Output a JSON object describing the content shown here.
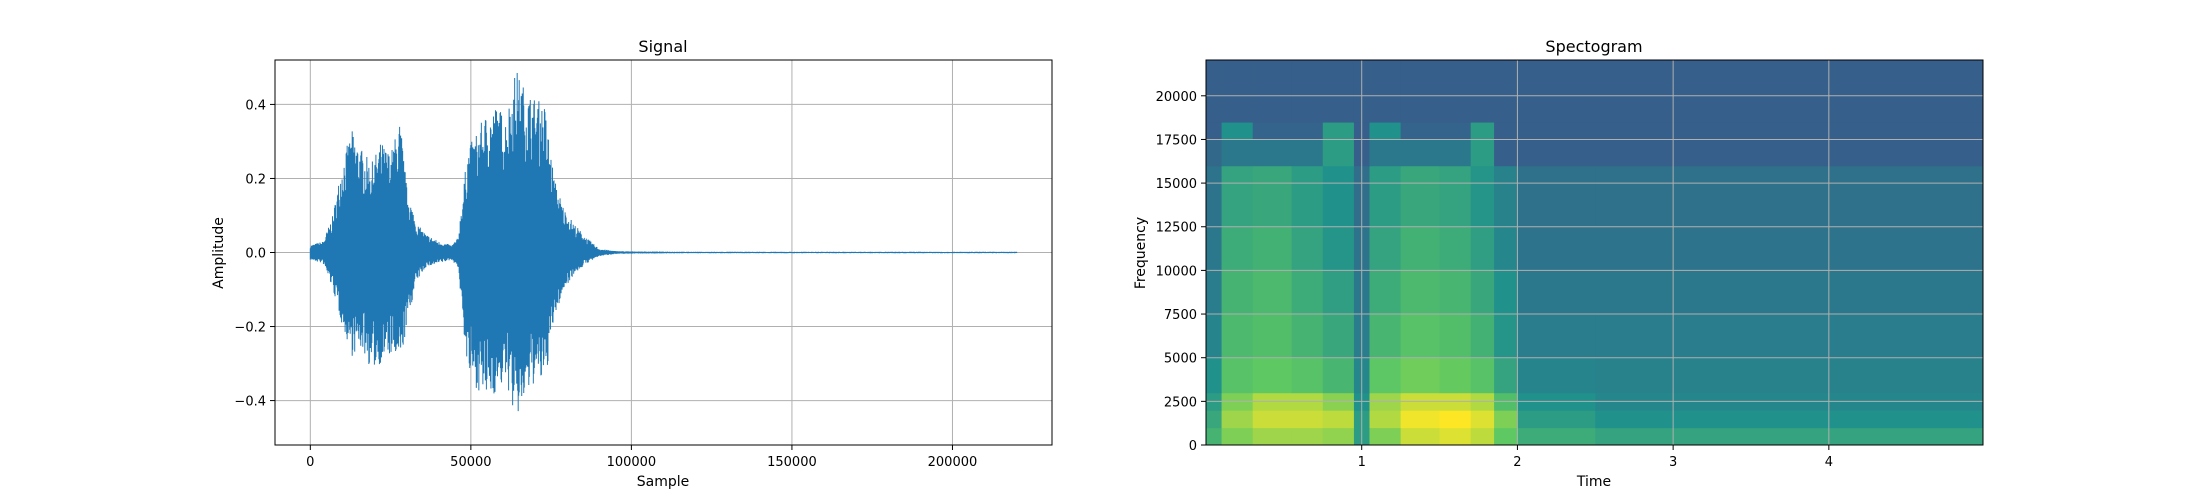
{
  "chart_data": [
    {
      "type": "line",
      "title": "Signal",
      "xlabel": "Sample",
      "ylabel": "Amplitude",
      "xlim": [
        -11000,
        231000
      ],
      "ylim": [
        -0.52,
        0.52
      ],
      "xticks": [
        0,
        50000,
        100000,
        150000,
        200000
      ],
      "xtick_labels": [
        "0",
        "50000",
        "100000",
        "150000",
        "200000"
      ],
      "yticks": [
        -0.4,
        -0.2,
        0.0,
        0.2,
        0.4
      ],
      "ytick_labels": [
        "−0.4",
        "−0.2",
        "0.0",
        "0.2",
        "0.4"
      ],
      "grid": true,
      "color": "#1f77b4",
      "series": [
        {
          "x": [
            0,
            4000,
            7000,
            10000,
            13000,
            16000,
            19000,
            22000,
            25000,
            28000,
            30000,
            33000,
            36000,
            40000,
            44000,
            46000,
            49000,
            52000,
            55000,
            58000,
            61000,
            64000,
            67000,
            70000,
            73000,
            76000,
            79000,
            82000,
            86000,
            90000,
            95000,
            100000,
            120000,
            140000,
            160000,
            180000,
            200000,
            220000
          ],
          "y_max": [
            0.02,
            0.03,
            0.1,
            0.25,
            0.33,
            0.28,
            0.24,
            0.3,
            0.27,
            0.36,
            0.18,
            0.08,
            0.05,
            0.03,
            0.02,
            0.04,
            0.28,
            0.33,
            0.38,
            0.4,
            0.37,
            0.5,
            0.44,
            0.42,
            0.4,
            0.2,
            0.12,
            0.08,
            0.04,
            0.01,
            0.004,
            0.003,
            0.002,
            0.002,
            0.002,
            0.002,
            0.002,
            0.002
          ],
          "y_min": [
            -0.02,
            -0.03,
            -0.1,
            -0.2,
            -0.28,
            -0.26,
            -0.32,
            -0.3,
            -0.28,
            -0.31,
            -0.2,
            -0.08,
            -0.04,
            -0.03,
            -0.02,
            -0.04,
            -0.33,
            -0.37,
            -0.4,
            -0.38,
            -0.35,
            -0.46,
            -0.4,
            -0.35,
            -0.36,
            -0.18,
            -0.1,
            -0.06,
            -0.03,
            -0.01,
            -0.004,
            -0.003,
            -0.002,
            -0.002,
            -0.002,
            -0.002,
            -0.002,
            -0.002
          ]
        }
      ]
    },
    {
      "type": "heatmap",
      "title": "Spectogram",
      "xlabel": "Time",
      "ylabel": "Frequency",
      "xlim": [
        0.0,
        4.99
      ],
      "ylim": [
        0,
        22050
      ],
      "xticks": [
        1,
        2,
        3,
        4
      ],
      "xtick_labels": [
        "1",
        "2",
        "3",
        "4"
      ],
      "yticks": [
        0,
        2500,
        5000,
        7500,
        10000,
        12500,
        15000,
        17500,
        20000
      ],
      "ytick_labels": [
        "0",
        "2500",
        "5000",
        "7500",
        "10000",
        "12500",
        "15000",
        "17500",
        "20000"
      ],
      "grid": true,
      "colormap": "viridis",
      "time_bins": [
        0.0,
        0.1,
        0.3,
        0.55,
        0.75,
        0.95,
        1.05,
        1.25,
        1.5,
        1.7,
        1.85,
        2.0,
        2.5,
        3.0,
        4.0,
        4.99
      ],
      "freq_bins": [
        0,
        1000,
        2000,
        3000,
        5000,
        7500,
        10000,
        12500,
        16000,
        17500,
        18500,
        22050
      ],
      "intensity_rows_low_to_high_freq": [
        [
          0.65,
          0.8,
          0.85,
          0.85,
          0.83,
          0.55,
          0.8,
          0.92,
          0.95,
          0.9,
          0.75,
          0.62,
          0.58,
          0.58,
          0.58,
          0.6
        ],
        [
          0.6,
          0.85,
          0.92,
          0.92,
          0.9,
          0.55,
          0.88,
          0.98,
          1.0,
          0.95,
          0.8,
          0.55,
          0.5,
          0.5,
          0.5,
          0.5
        ],
        [
          0.55,
          0.8,
          0.88,
          0.88,
          0.82,
          0.5,
          0.85,
          0.92,
          0.92,
          0.88,
          0.7,
          0.5,
          0.46,
          0.46,
          0.46,
          0.46
        ],
        [
          0.5,
          0.72,
          0.75,
          0.72,
          0.66,
          0.46,
          0.74,
          0.78,
          0.76,
          0.72,
          0.58,
          0.45,
          0.44,
          0.44,
          0.44,
          0.44
        ],
        [
          0.45,
          0.68,
          0.7,
          0.65,
          0.6,
          0.42,
          0.66,
          0.72,
          0.7,
          0.64,
          0.52,
          0.42,
          0.42,
          0.42,
          0.42,
          0.42
        ],
        [
          0.42,
          0.65,
          0.68,
          0.62,
          0.56,
          0.4,
          0.62,
          0.68,
          0.66,
          0.6,
          0.5,
          0.4,
          0.4,
          0.4,
          0.4,
          0.4
        ],
        [
          0.4,
          0.62,
          0.64,
          0.58,
          0.52,
          0.38,
          0.58,
          0.64,
          0.62,
          0.56,
          0.46,
          0.38,
          0.38,
          0.38,
          0.38,
          0.38
        ],
        [
          0.38,
          0.58,
          0.6,
          0.55,
          0.5,
          0.36,
          0.55,
          0.6,
          0.58,
          0.52,
          0.44,
          0.37,
          0.37,
          0.37,
          0.37,
          0.37
        ],
        [
          0.34,
          0.4,
          0.4,
          0.4,
          0.55,
          0.3,
          0.4,
          0.4,
          0.4,
          0.55,
          0.3,
          0.3,
          0.3,
          0.3,
          0.3,
          0.3
        ],
        [
          0.3,
          0.5,
          0.32,
          0.32,
          0.55,
          0.3,
          0.5,
          0.32,
          0.32,
          0.55,
          0.3,
          0.3,
          0.3,
          0.3,
          0.3,
          0.3
        ],
        [
          0.3,
          0.3,
          0.3,
          0.3,
          0.3,
          0.3,
          0.3,
          0.3,
          0.3,
          0.3,
          0.3,
          0.3,
          0.3,
          0.3,
          0.3,
          0.3
        ]
      ]
    }
  ]
}
